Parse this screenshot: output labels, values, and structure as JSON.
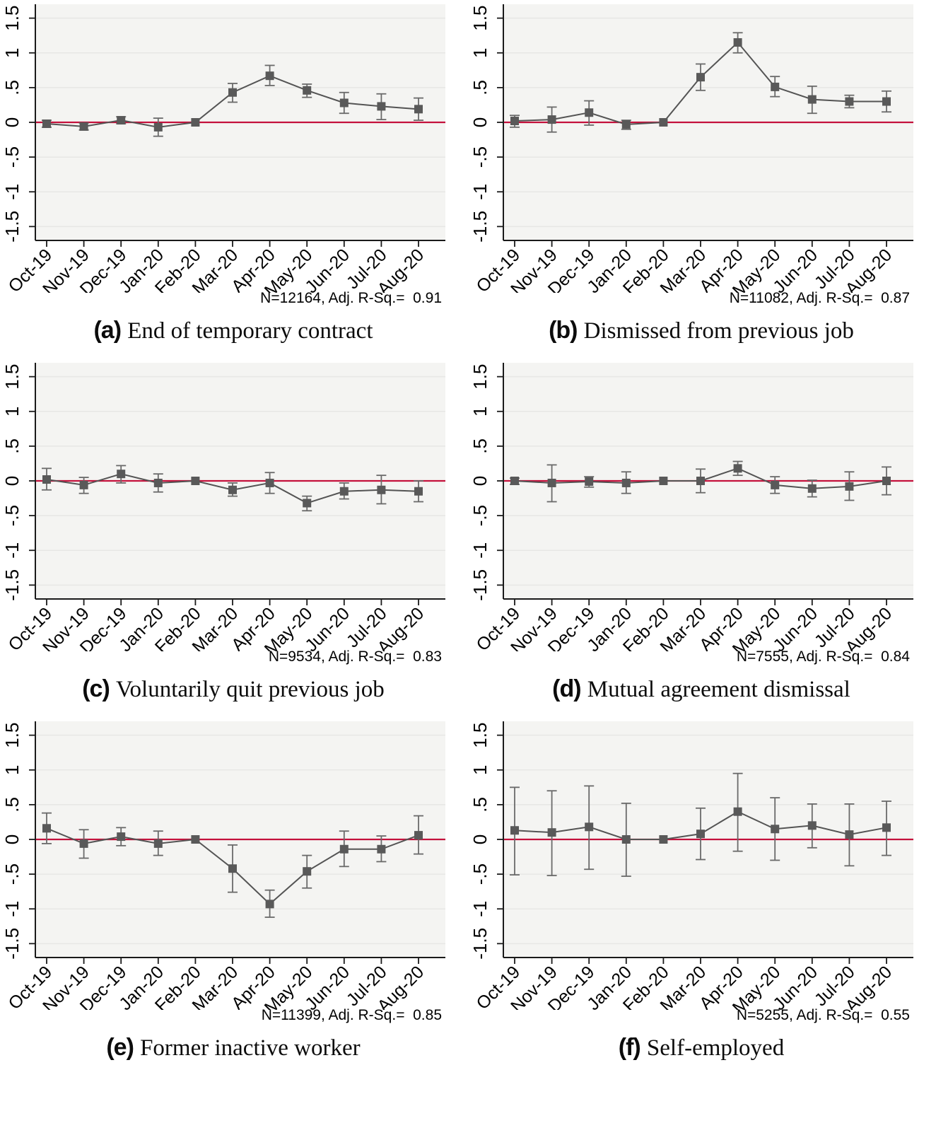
{
  "styles": {
    "plot_bg": "#f4f4f2",
    "grid_color": "#e7e7e5",
    "axis_color": "#1a1a1a",
    "refline_color": "#c4113c",
    "marker_color": "#595959",
    "line_color": "#545454",
    "ci_color": "#6a6a6a"
  },
  "chart_data": [
    {
      "type": "line",
      "panel_label": "(a)",
      "caption": "End of temporary contract",
      "note": "N=12164, Adj. R-Sq.=  0.91",
      "legend": "none",
      "grid": "horizontal",
      "ylim": [
        -1.7,
        1.7
      ],
      "ytick_values": [
        1.5,
        1,
        0.5,
        0,
        -0.5,
        -1,
        -1.5
      ],
      "yticks": [
        "1.5",
        "1",
        ".5",
        "0",
        "-.5",
        "-1",
        "-1.5"
      ],
      "refline": 0,
      "reference_category": "Feb-20",
      "categories": [
        "Oct-19",
        "Nov-19",
        "Dec-19",
        "Jan-20",
        "Feb-20",
        "Mar-20",
        "Apr-20",
        "May-20",
        "Jun-20",
        "Jul-20",
        "Aug-20"
      ],
      "series": [
        {
          "name": "coefficient",
          "values": [
            -0.02,
            -0.06,
            0.03,
            -0.07,
            0.0,
            0.43,
            0.67,
            0.46,
            0.28,
            0.23,
            0.19
          ]
        },
        {
          "name": "ci_lower",
          "values": [
            -0.07,
            -0.11,
            -0.02,
            -0.2,
            0.0,
            0.29,
            0.53,
            0.36,
            0.13,
            0.04,
            0.03
          ]
        },
        {
          "name": "ci_upper",
          "values": [
            0.03,
            -0.01,
            0.08,
            0.06,
            0.0,
            0.56,
            0.82,
            0.55,
            0.43,
            0.41,
            0.35
          ]
        }
      ]
    },
    {
      "type": "line",
      "panel_label": "(b)",
      "caption": "Dismissed from previous job",
      "note": "N=11082, Adj. R-Sq.=  0.87",
      "legend": "none",
      "grid": "horizontal",
      "ylim": [
        -1.7,
        1.7
      ],
      "ytick_values": [
        1.5,
        1,
        0.5,
        0,
        -0.5,
        -1,
        -1.5
      ],
      "yticks": [
        "1.5",
        "1",
        ".5",
        "0",
        "-.5",
        "-1",
        "-1.5"
      ],
      "refline": 0,
      "reference_category": "Feb-20",
      "categories": [
        "Oct-19",
        "Nov-19",
        "Dec-19",
        "Jan-20",
        "Feb-20",
        "Mar-20",
        "Apr-20",
        "May-20",
        "Jun-20",
        "Jul-20",
        "Aug-20"
      ],
      "series": [
        {
          "name": "coefficient",
          "values": [
            0.02,
            0.04,
            0.14,
            -0.03,
            0.0,
            0.65,
            1.15,
            0.51,
            0.33,
            0.3,
            0.3
          ]
        },
        {
          "name": "ci_lower",
          "values": [
            -0.07,
            -0.14,
            -0.04,
            -0.1,
            0.0,
            0.46,
            1.0,
            0.37,
            0.13,
            0.21,
            0.15
          ]
        },
        {
          "name": "ci_upper",
          "values": [
            0.1,
            0.22,
            0.31,
            0.03,
            0.0,
            0.84,
            1.29,
            0.66,
            0.52,
            0.39,
            0.45
          ]
        }
      ]
    },
    {
      "type": "line",
      "panel_label": "(c)",
      "caption": "Voluntarily quit previous job",
      "note": "N=9534, Adj. R-Sq.=  0.83",
      "legend": "none",
      "grid": "horizontal",
      "ylim": [
        -1.7,
        1.7
      ],
      "ytick_values": [
        1.5,
        1,
        0.5,
        0,
        -0.5,
        -1,
        -1.5
      ],
      "yticks": [
        "1.5",
        "1",
        ".5",
        "0",
        "-.5",
        "-1",
        "-1.5"
      ],
      "refline": 0,
      "reference_category": "Feb-20",
      "categories": [
        "Oct-19",
        "Nov-19",
        "Dec-19",
        "Jan-20",
        "Feb-20",
        "Mar-20",
        "Apr-20",
        "May-20",
        "Jun-20",
        "Jul-20",
        "Aug-20"
      ],
      "series": [
        {
          "name": "coefficient",
          "values": [
            0.02,
            -0.06,
            0.1,
            -0.03,
            0.0,
            -0.13,
            -0.03,
            -0.32,
            -0.15,
            -0.13,
            -0.15
          ]
        },
        {
          "name": "ci_lower",
          "values": [
            -0.13,
            -0.18,
            -0.03,
            -0.16,
            0.0,
            -0.22,
            -0.18,
            -0.43,
            -0.26,
            -0.33,
            -0.3
          ]
        },
        {
          "name": "ci_upper",
          "values": [
            0.18,
            0.05,
            0.22,
            0.1,
            0.0,
            -0.03,
            0.12,
            -0.22,
            -0.03,
            0.08,
            0.0
          ]
        }
      ]
    },
    {
      "type": "line",
      "panel_label": "(d)",
      "caption": "Mutual agreement dismissal",
      "note": "N=7555, Adj. R-Sq.=  0.84",
      "legend": "none",
      "grid": "horizontal",
      "ylim": [
        -1.7,
        1.7
      ],
      "ytick_values": [
        1.5,
        1,
        0.5,
        0,
        -0.5,
        -1,
        -1.5
      ],
      "yticks": [
        "1.5",
        "1",
        ".5",
        "0",
        "-.5",
        "-1",
        "-1.5"
      ],
      "refline": 0,
      "reference_category": "Feb-20",
      "categories": [
        "Oct-19",
        "Nov-19",
        "Dec-19",
        "Jan-20",
        "Feb-20",
        "Mar-20",
        "Apr-20",
        "May-20",
        "Jun-20",
        "Jul-20",
        "Aug-20"
      ],
      "series": [
        {
          "name": "coefficient",
          "values": [
            0.0,
            -0.03,
            -0.01,
            -0.03,
            0.0,
            0.0,
            0.18,
            -0.06,
            -0.11,
            -0.08,
            0.0
          ]
        },
        {
          "name": "ci_lower",
          "values": [
            -0.05,
            -0.3,
            -0.09,
            -0.18,
            0.0,
            -0.17,
            0.08,
            -0.18,
            -0.23,
            -0.28,
            -0.2
          ]
        },
        {
          "name": "ci_upper",
          "values": [
            0.04,
            0.23,
            0.06,
            0.13,
            0.0,
            0.17,
            0.28,
            0.06,
            0.01,
            0.13,
            0.2
          ]
        }
      ]
    },
    {
      "type": "line",
      "panel_label": "(e)",
      "caption": "Former inactive worker",
      "note": "N=11399, Adj. R-Sq.=  0.85",
      "legend": "none",
      "grid": "horizontal",
      "ylim": [
        -1.7,
        1.7
      ],
      "ytick_values": [
        1.5,
        1,
        0.5,
        0,
        -0.5,
        -1,
        -1.5
      ],
      "yticks": [
        "1.5",
        "1",
        ".5",
        "0",
        "-.5",
        "-1",
        "-1.5"
      ],
      "refline": 0,
      "reference_category": "Feb-20",
      "categories": [
        "Oct-19",
        "Nov-19",
        "Dec-19",
        "Jan-20",
        "Feb-20",
        "Mar-20",
        "Apr-20",
        "May-20",
        "Jun-20",
        "Jul-20",
        "Aug-20"
      ],
      "series": [
        {
          "name": "coefficient",
          "values": [
            0.16,
            -0.06,
            0.04,
            -0.06,
            0.0,
            -0.42,
            -0.93,
            -0.46,
            -0.14,
            -0.14,
            0.06
          ]
        },
        {
          "name": "ci_lower",
          "values": [
            -0.06,
            -0.27,
            -0.09,
            -0.23,
            0.0,
            -0.76,
            -1.12,
            -0.7,
            -0.39,
            -0.32,
            -0.21
          ]
        },
        {
          "name": "ci_upper",
          "values": [
            0.38,
            0.14,
            0.17,
            0.12,
            0.0,
            -0.08,
            -0.73,
            -0.23,
            0.12,
            0.05,
            0.34
          ]
        }
      ]
    },
    {
      "type": "line",
      "panel_label": "(f)",
      "caption": "Self-employed",
      "note": "N=5255, Adj. R-Sq.=  0.55",
      "legend": "none",
      "grid": "horizontal",
      "ylim": [
        -1.7,
        1.7
      ],
      "ytick_values": [
        1.5,
        1,
        0.5,
        0,
        -0.5,
        -1,
        -1.5
      ],
      "yticks": [
        "1.5",
        "1",
        ".5",
        "0",
        "-.5",
        "-1",
        "-1.5"
      ],
      "refline": 0,
      "reference_category": "Feb-20",
      "categories": [
        "Oct-19",
        "Nov-19",
        "Dec-19",
        "Jan-20",
        "Feb-20",
        "Mar-20",
        "Apr-20",
        "May-20",
        "Jun-20",
        "Jul-20",
        "Aug-20"
      ],
      "series": [
        {
          "name": "coefficient",
          "values": [
            0.13,
            0.1,
            0.18,
            0.0,
            0.0,
            0.08,
            0.4,
            0.15,
            0.2,
            0.07,
            0.17
          ]
        },
        {
          "name": "ci_lower",
          "values": [
            -0.51,
            -0.52,
            -0.43,
            -0.53,
            0.0,
            -0.29,
            -0.17,
            -0.3,
            -0.12,
            -0.38,
            -0.23
          ]
        },
        {
          "name": "ci_upper",
          "values": [
            0.75,
            0.7,
            0.77,
            0.52,
            0.0,
            0.45,
            0.95,
            0.6,
            0.51,
            0.51,
            0.55
          ]
        }
      ]
    }
  ]
}
